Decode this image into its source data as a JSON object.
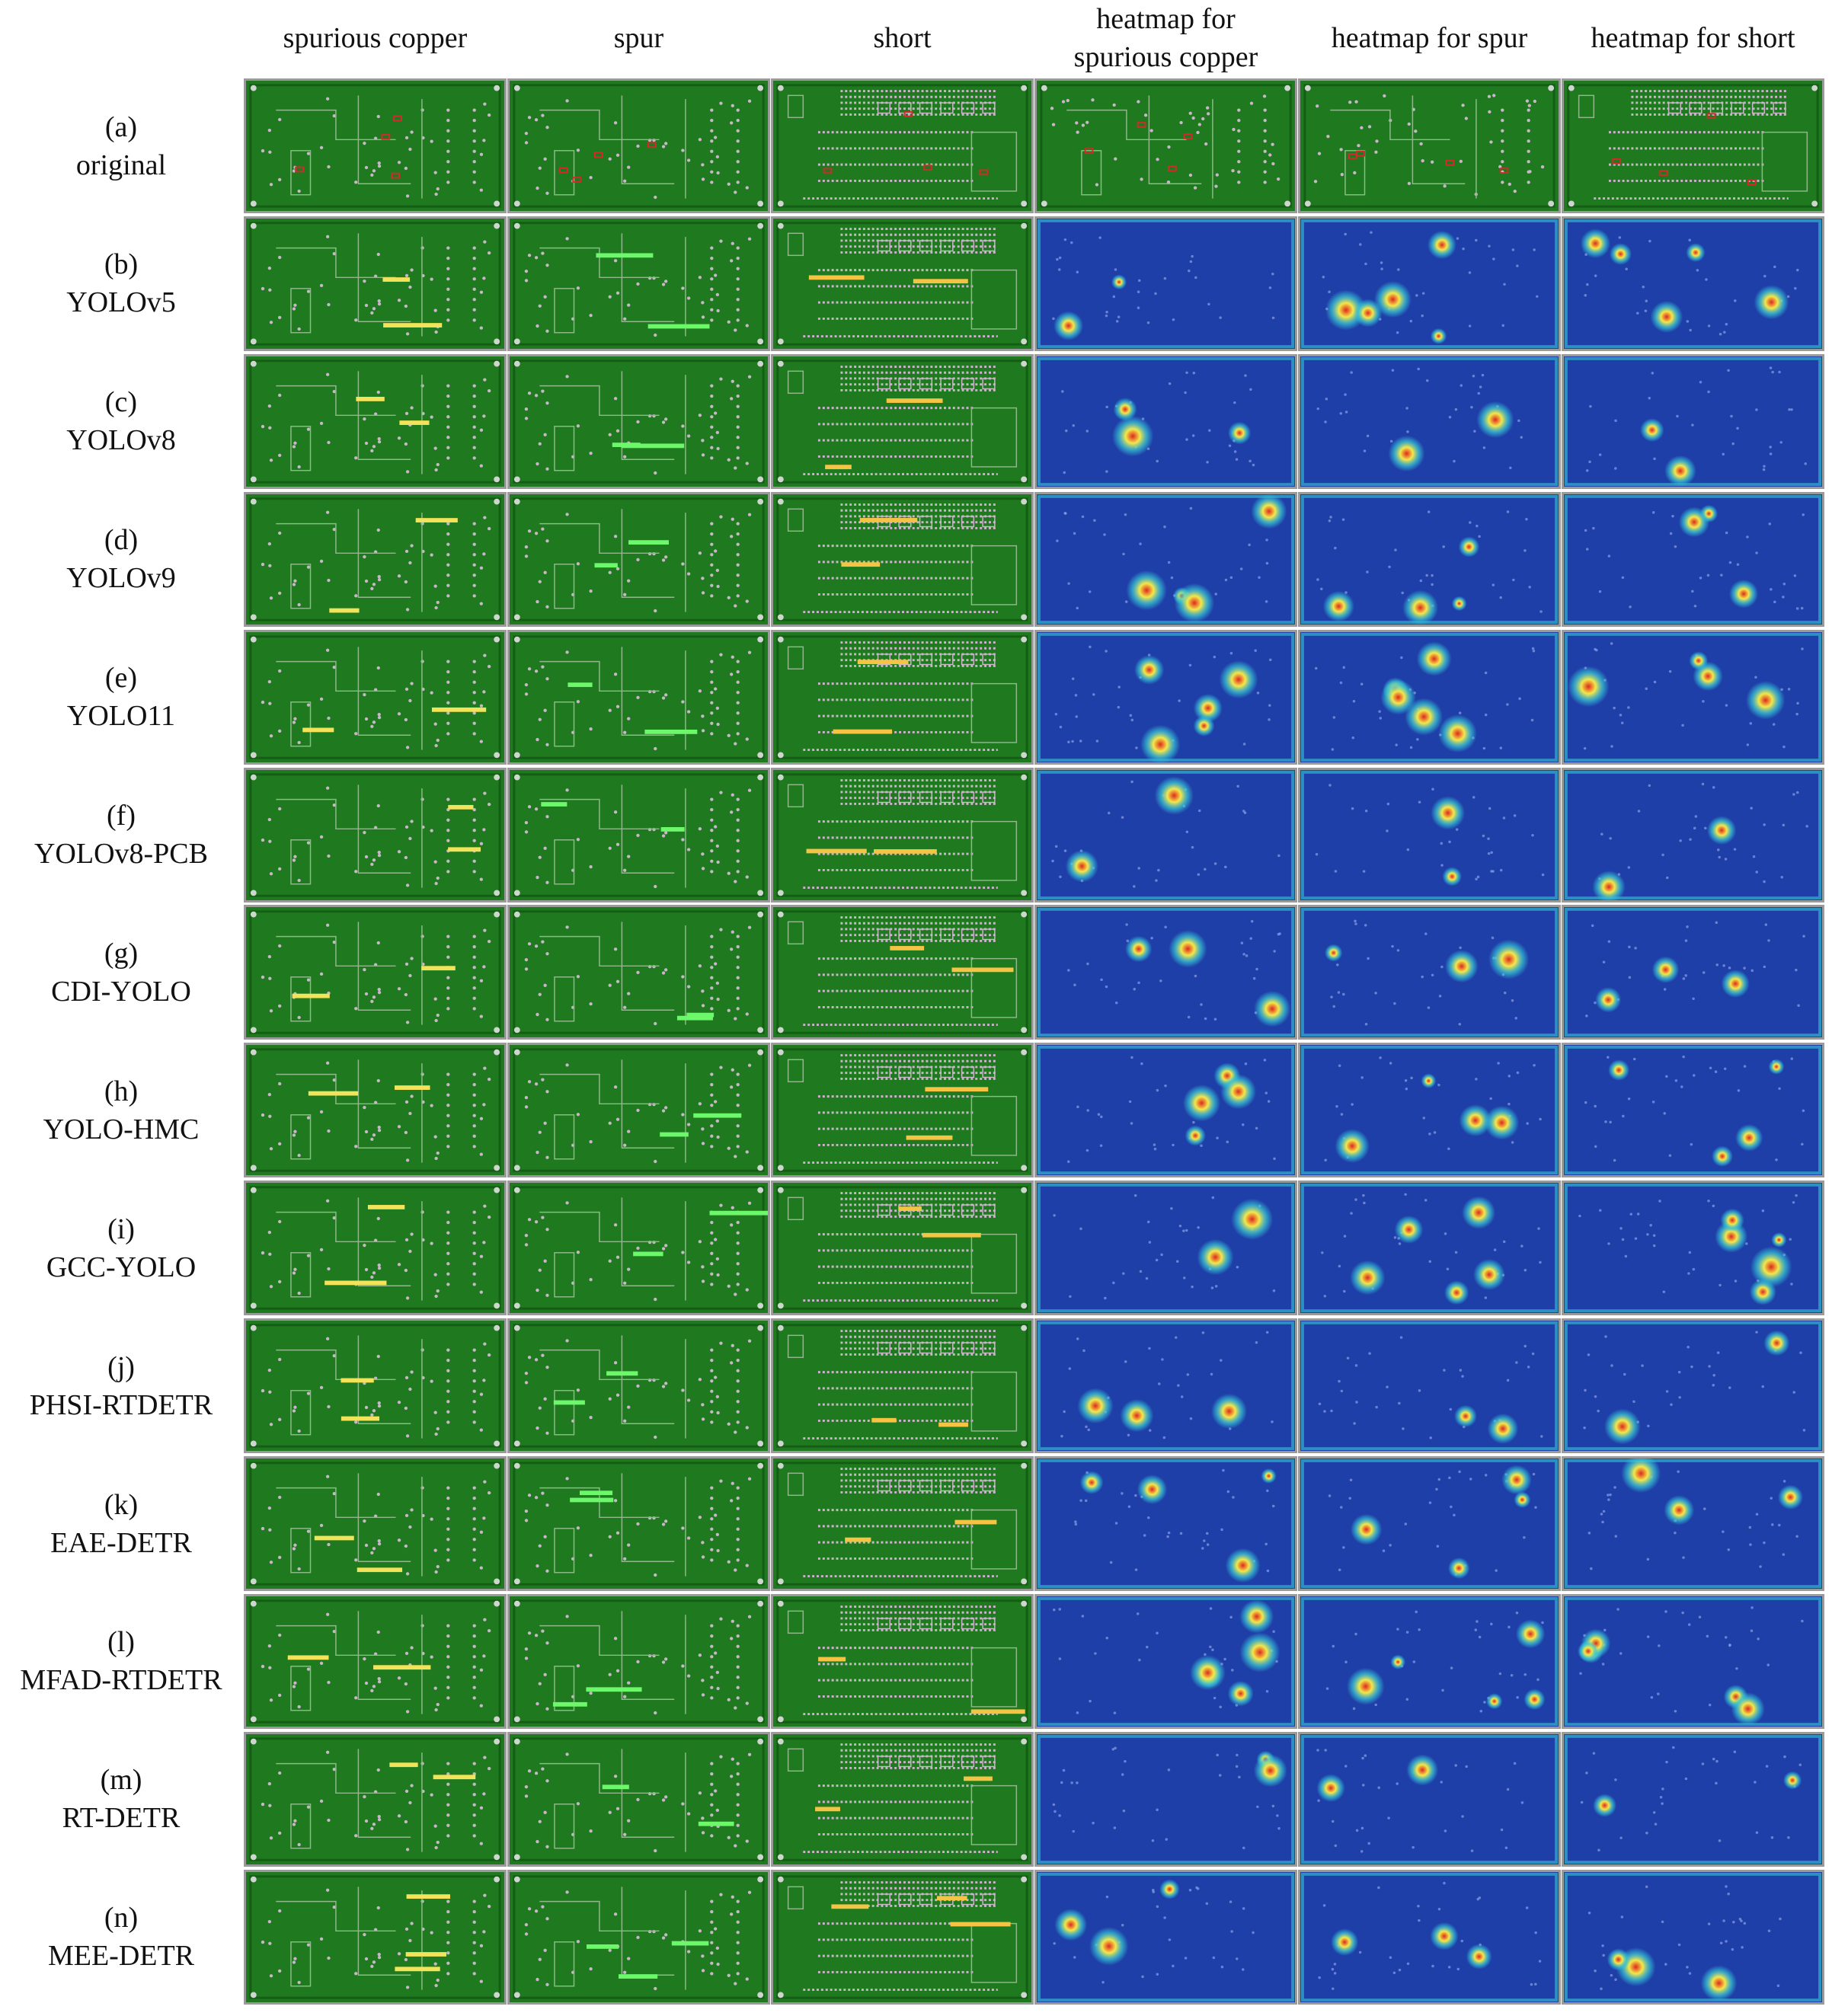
{
  "columns": [
    {
      "label_lines": [
        "spurious copper"
      ],
      "kind": "board",
      "bbox_color": "#f2e35a"
    },
    {
      "label_lines": [
        "spur"
      ],
      "kind": "board",
      "bbox_color": "#6cf86a"
    },
    {
      "label_lines": [
        "short"
      ],
      "kind": "board",
      "bbox_color": "#f5c445"
    },
    {
      "label_lines": [
        "heatmap for",
        "spurious copper"
      ],
      "kind": "heatmap"
    },
    {
      "label_lines": [
        "heatmap for spur"
      ],
      "kind": "heatmap"
    },
    {
      "label_lines": [
        "heatmap for short"
      ],
      "kind": "heatmap"
    }
  ],
  "rows": [
    {
      "tag": "(a)",
      "name": "original"
    },
    {
      "tag": "(b)",
      "name": "YOLOv5"
    },
    {
      "tag": "(c)",
      "name": "YOLOv8"
    },
    {
      "tag": "(d)",
      "name": "YOLOv9"
    },
    {
      "tag": "(e)",
      "name": "YOLO11"
    },
    {
      "tag": "(f)",
      "name": "YOLOv8-PCB"
    },
    {
      "tag": "(g)",
      "name": "CDI-YOLO"
    },
    {
      "tag": "(h)",
      "name": "YOLO-HMC"
    },
    {
      "tag": "(i)",
      "name": "GCC-YOLO"
    },
    {
      "tag": "(j)",
      "name": "PHSI-RTDETR"
    },
    {
      "tag": "(k)",
      "name": "EAE-DETR"
    },
    {
      "tag": "(l)",
      "name": "MFAD-RTDETR"
    },
    {
      "tag": "(m)",
      "name": "RT-DETR"
    },
    {
      "tag": "(n)",
      "name": "MEE-DETR"
    }
  ],
  "colors": {
    "board_green": "#1f7a1f",
    "board_dark": "#155c15",
    "trace": "#8fb98a",
    "pad": "#c9b7c9",
    "defect_red": "#d22a2a",
    "heat_blue": "#1f3fa8",
    "heat_cyan": "#35c7d6",
    "heat_yellow": "#f3e84a",
    "heat_red": "#e0281c"
  }
}
